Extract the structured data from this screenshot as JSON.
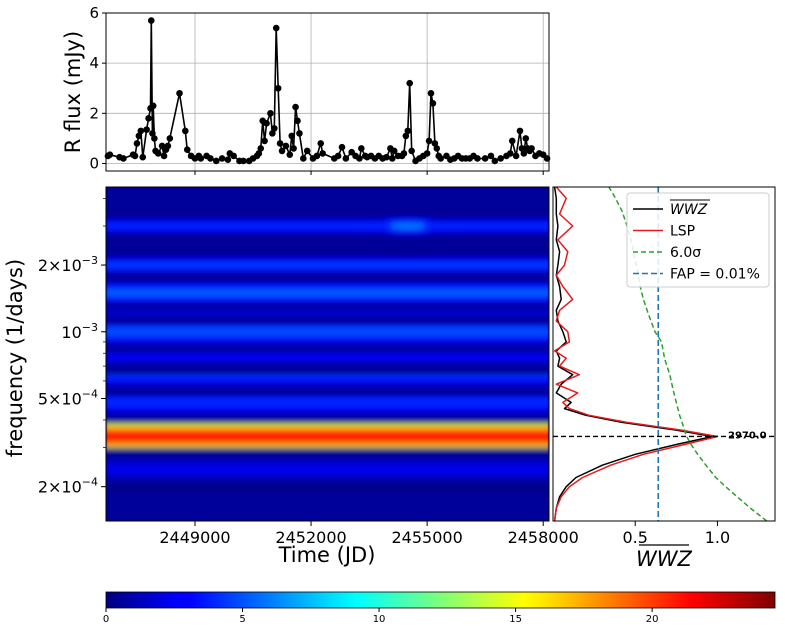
{
  "chart_data": [
    {
      "id": "lightcurve",
      "type": "line",
      "ylabel": "R flux (mJy)",
      "xlim": [
        2446700,
        2458150
      ],
      "ylim": [
        -0.3,
        6
      ],
      "yticks": [
        0,
        2,
        4,
        6
      ],
      "grid": true,
      "marker": "circle",
      "color": "#000000",
      "points": [
        [
          2446750,
          0.3
        ],
        [
          2446800,
          0.35
        ],
        [
          2447050,
          0.25
        ],
        [
          2447150,
          0.2
        ],
        [
          2447400,
          0.35
        ],
        [
          2447450,
          0.3
        ],
        [
          2447500,
          0.8
        ],
        [
          2447550,
          1.1
        ],
        [
          2447600,
          1.3
        ],
        [
          2447650,
          0.25
        ],
        [
          2447750,
          1.35
        ],
        [
          2447800,
          1.8
        ],
        [
          2447850,
          2.2
        ],
        [
          2447870,
          5.7
        ],
        [
          2447900,
          1.2
        ],
        [
          2447920,
          2.3
        ],
        [
          2447950,
          1.0
        ],
        [
          2447980,
          0.5
        ],
        [
          2448050,
          0.4
        ],
        [
          2448150,
          0.7
        ],
        [
          2448200,
          0.3
        ],
        [
          2448250,
          0.55
        ],
        [
          2448300,
          0.7
        ],
        [
          2448350,
          1.0
        ],
        [
          2448600,
          2.8
        ],
        [
          2448750,
          1.3
        ],
        [
          2448800,
          0.55
        ],
        [
          2448900,
          0.3
        ],
        [
          2449000,
          0.2
        ],
        [
          2449100,
          0.3
        ],
        [
          2449150,
          0.2
        ],
        [
          2449300,
          0.3
        ],
        [
          2449400,
          0.2
        ],
        [
          2449550,
          0.1
        ],
        [
          2449700,
          0.2
        ],
        [
          2449850,
          0.15
        ],
        [
          2449900,
          0.4
        ],
        [
          2450000,
          0.3
        ],
        [
          2450150,
          0.1
        ],
        [
          2450250,
          0.1
        ],
        [
          2450400,
          0.1
        ],
        [
          2450500,
          0.2
        ],
        [
          2450600,
          0.3
        ],
        [
          2450650,
          0.4
        ],
        [
          2450700,
          0.6
        ],
        [
          2450750,
          1.7
        ],
        [
          2450800,
          0.9
        ],
        [
          2450850,
          1.6
        ],
        [
          2450950,
          2.0
        ],
        [
          2451000,
          1.2
        ],
        [
          2451050,
          1.4
        ],
        [
          2451100,
          5.4
        ],
        [
          2451150,
          3.0
        ],
        [
          2451200,
          0.8
        ],
        [
          2451250,
          0.5
        ],
        [
          2451350,
          0.7
        ],
        [
          2451450,
          0.35
        ],
        [
          2451500,
          1.1
        ],
        [
          2451550,
          0.6
        ],
        [
          2451600,
          2.25
        ],
        [
          2451650,
          1.7
        ],
        [
          2451700,
          1.2
        ],
        [
          2451800,
          0.2
        ],
        [
          2451900,
          0.5
        ],
        [
          2452050,
          0.2
        ],
        [
          2452150,
          0.3
        ],
        [
          2452250,
          0.8
        ],
        [
          2452300,
          0.4
        ],
        [
          2452600,
          0.2
        ],
        [
          2452700,
          0.3
        ],
        [
          2452800,
          0.65
        ],
        [
          2452900,
          0.2
        ],
        [
          2453050,
          0.45
        ],
        [
          2453150,
          0.3
        ],
        [
          2453250,
          0.2
        ],
        [
          2453300,
          0.6
        ],
        [
          2453400,
          0.3
        ],
        [
          2453450,
          0.25
        ],
        [
          2453550,
          0.3
        ],
        [
          2453650,
          0.2
        ],
        [
          2453750,
          0.3
        ],
        [
          2453850,
          0.2
        ],
        [
          2453950,
          0.25
        ],
        [
          2454050,
          0.6
        ],
        [
          2454100,
          0.2
        ],
        [
          2454150,
          0.5
        ],
        [
          2454250,
          0.3
        ],
        [
          2454350,
          0.3
        ],
        [
          2454400,
          0.4
        ],
        [
          2454450,
          1.1
        ],
        [
          2454500,
          1.3
        ],
        [
          2454550,
          3.2
        ],
        [
          2454600,
          0.5
        ],
        [
          2454700,
          0.1
        ],
        [
          2454800,
          0.2
        ],
        [
          2454900,
          0.3
        ],
        [
          2455000,
          0.4
        ],
        [
          2455050,
          0.9
        ],
        [
          2455100,
          2.8
        ],
        [
          2455150,
          2.4
        ],
        [
          2455200,
          0.8
        ],
        [
          2455250,
          0.6
        ],
        [
          2455300,
          0.3
        ],
        [
          2455350,
          0.2
        ],
        [
          2455500,
          0.3
        ],
        [
          2455600,
          0.15
        ],
        [
          2455700,
          0.2
        ],
        [
          2455800,
          0.3
        ],
        [
          2455900,
          0.2
        ],
        [
          2456000,
          0.2
        ],
        [
          2456100,
          0.2
        ],
        [
          2456200,
          0.3
        ],
        [
          2456300,
          0.2
        ],
        [
          2456500,
          0.2
        ],
        [
          2456650,
          0.3
        ],
        [
          2456750,
          0.1
        ],
        [
          2456900,
          0.2
        ],
        [
          2457050,
          0.3
        ],
        [
          2457150,
          0.4
        ],
        [
          2457200,
          0.9
        ],
        [
          2457300,
          0.3
        ],
        [
          2457400,
          1.3
        ],
        [
          2457450,
          0.6
        ],
        [
          2457500,
          0.4
        ],
        [
          2457550,
          1.0
        ],
        [
          2457600,
          0.6
        ],
        [
          2457650,
          0.5
        ],
        [
          2457700,
          0.6
        ],
        [
          2457800,
          0.3
        ],
        [
          2457900,
          0.4
        ],
        [
          2458000,
          0.35
        ],
        [
          2458100,
          0.2
        ]
      ]
    },
    {
      "id": "wavelet",
      "type": "heatmap",
      "colormap": "jet",
      "xlabel": "Time (JD)",
      "ylabel": "frequency (1/days)",
      "xlim": [
        2446700,
        2458150
      ],
      "xticks": [
        2449000,
        2452000,
        2455000,
        2458000
      ],
      "xtick_labels": [
        "2449000",
        "2452000",
        "2455000",
        "2458000"
      ],
      "yscale": "log",
      "ylim": [
        0.00014,
        0.0045
      ],
      "ytick_labels": [
        {
          "value": 0.0002,
          "mantissa": "2",
          "exponent": "−4"
        },
        {
          "value": 0.0005,
          "mantissa": "5",
          "exponent": "−4"
        },
        {
          "value": 0.001,
          "mantissa": "",
          "exponent": "−3"
        },
        {
          "value": 0.002,
          "mantissa": "2",
          "exponent": "−3"
        }
      ],
      "bands": [
        {
          "freq": 0.000337,
          "power": 22.5,
          "spread": 0.055
        },
        {
          "freq": 0.00024,
          "power": 2.5,
          "spread": 0.03
        },
        {
          "freq": 0.00048,
          "power": 4.0,
          "spread": 0.03
        },
        {
          "freq": 0.00064,
          "power": 4.2,
          "spread": 0.03
        },
        {
          "freq": 0.0008,
          "power": 3.2,
          "spread": 0.03
        },
        {
          "freq": 0.001,
          "power": 5.0,
          "spread": 0.03
        },
        {
          "freq": 0.0013,
          "power": 3.5,
          "spread": 0.025
        },
        {
          "freq": 0.0015,
          "power": 5.5,
          "spread": 0.025
        },
        {
          "freq": 0.002,
          "power": 4.5,
          "spread": 0.02
        },
        {
          "freq": 0.003,
          "power": 6.5,
          "spread": 0.02,
          "peak_time": 2454500
        }
      ]
    },
    {
      "id": "periodogram",
      "type": "line",
      "xlabel": "WWZ",
      "xlim": [
        0,
        1.35
      ],
      "xticks": [
        0.5,
        1.0
      ],
      "xtick_labels": [
        "0.5",
        "1.0"
      ],
      "yscale": "log",
      "ylim": [
        0.00014,
        0.0045
      ],
      "legend_position": "top-right",
      "legend": [
        "WWZ",
        "LSP",
        "6.0σ",
        "FAP = 0.01%"
      ],
      "peak_annotation": {
        "label": "2970.0",
        "freq": 0.000337
      },
      "fap_level": 0.64,
      "series": [
        {
          "name": "WWZ",
          "color": "#000000",
          "style": "solid",
          "points": [
            [
              0.01,
              0.00014
            ],
            [
              0.02,
              0.00016
            ],
            [
              0.04,
              0.00018
            ],
            [
              0.08,
              0.0002
            ],
            [
              0.14,
              0.00022
            ],
            [
              0.3,
              0.00025
            ],
            [
              0.5,
              0.00028
            ],
            [
              0.75,
              0.00031
            ],
            [
              0.97,
              0.000337
            ],
            [
              0.75,
              0.00036
            ],
            [
              0.42,
              0.00039
            ],
            [
              0.2,
              0.00042
            ],
            [
              0.07,
              0.00045
            ],
            [
              0.11,
              0.00048
            ],
            [
              0.02,
              0.00053
            ],
            [
              0.05,
              0.00058
            ],
            [
              0.12,
              0.00064
            ],
            [
              0.03,
              0.0007
            ],
            [
              0.04,
              0.00076
            ],
            [
              0.02,
              0.00082
            ],
            [
              0.08,
              0.0009
            ],
            [
              0.06,
              0.001
            ],
            [
              0.03,
              0.00112
            ],
            [
              0.02,
              0.00125
            ],
            [
              0.05,
              0.0014
            ],
            [
              0.04,
              0.0016
            ],
            [
              0.02,
              0.0018
            ],
            [
              0.03,
              0.002
            ],
            [
              0.04,
              0.0023
            ],
            [
              0.02,
              0.0026
            ],
            [
              0.03,
              0.003
            ],
            [
              0.02,
              0.0034
            ],
            [
              0.02,
              0.004
            ],
            [
              0.01,
              0.0045
            ]
          ]
        },
        {
          "name": "LSP",
          "color": "#e41a1c",
          "style": "solid",
          "points": [
            [
              0.01,
              0.00014
            ],
            [
              0.02,
              0.00016
            ],
            [
              0.05,
              0.00018
            ],
            [
              0.1,
              0.0002
            ],
            [
              0.18,
              0.00022
            ],
            [
              0.35,
              0.00025
            ],
            [
              0.55,
              0.00028
            ],
            [
              0.8,
              0.00031
            ],
            [
              1.0,
              0.000337
            ],
            [
              0.78,
              0.00036
            ],
            [
              0.45,
              0.00039
            ],
            [
              0.22,
              0.00042
            ],
            [
              0.1,
              0.00045
            ],
            [
              0.06,
              0.00048
            ],
            [
              0.15,
              0.00053
            ],
            [
              0.02,
              0.00058
            ],
            [
              0.16,
              0.00064
            ],
            [
              0.04,
              0.0007
            ],
            [
              0.08,
              0.00076
            ],
            [
              0.01,
              0.00082
            ],
            [
              0.1,
              0.0009
            ],
            [
              0.09,
              0.001
            ],
            [
              0.02,
              0.00112
            ],
            [
              0.04,
              0.00125
            ],
            [
              0.12,
              0.0014
            ],
            [
              0.06,
              0.0016
            ],
            [
              0.02,
              0.0018
            ],
            [
              0.07,
              0.002
            ],
            [
              0.09,
              0.0023
            ],
            [
              0.03,
              0.0026
            ],
            [
              0.12,
              0.003
            ],
            [
              0.04,
              0.0034
            ],
            [
              0.08,
              0.004
            ],
            [
              0.02,
              0.0045
            ]
          ]
        },
        {
          "name": "6.0σ",
          "color": "#2ca02c",
          "style": "dashed",
          "points": [
            [
              1.3,
              0.00014
            ],
            [
              1.2,
              0.00016
            ],
            [
              1.12,
              0.00018
            ],
            [
              1.05,
              0.0002
            ],
            [
              0.99,
              0.00022
            ],
            [
              0.93,
              0.00025
            ],
            [
              0.88,
              0.00028
            ],
            [
              0.84,
              0.00031
            ],
            [
              0.81,
              0.00034
            ],
            [
              0.79,
              0.00038
            ],
            [
              0.77,
              0.00042
            ],
            [
              0.75,
              0.00048
            ],
            [
              0.73,
              0.00055
            ],
            [
              0.71,
              0.00064
            ],
            [
              0.68,
              0.00075
            ],
            [
              0.66,
              0.0009
            ],
            [
              0.62,
              0.001
            ],
            [
              0.58,
              0.0012
            ],
            [
              0.55,
              0.0014
            ],
            [
              0.53,
              0.0016
            ],
            [
              0.52,
              0.0018
            ],
            [
              0.5,
              0.0021
            ],
            [
              0.48,
              0.0025
            ],
            [
              0.45,
              0.003
            ],
            [
              0.42,
              0.0035
            ],
            [
              0.38,
              0.004
            ],
            [
              0.34,
              0.0045
            ]
          ]
        }
      ]
    },
    {
      "id": "colorbar",
      "type": "heatmap",
      "colormap": "jet",
      "range": [
        0,
        24.5
      ],
      "ticks": [
        0,
        5,
        10,
        15,
        20
      ],
      "tick_labels": [
        "0",
        "5",
        "10",
        "15",
        "20"
      ]
    }
  ]
}
